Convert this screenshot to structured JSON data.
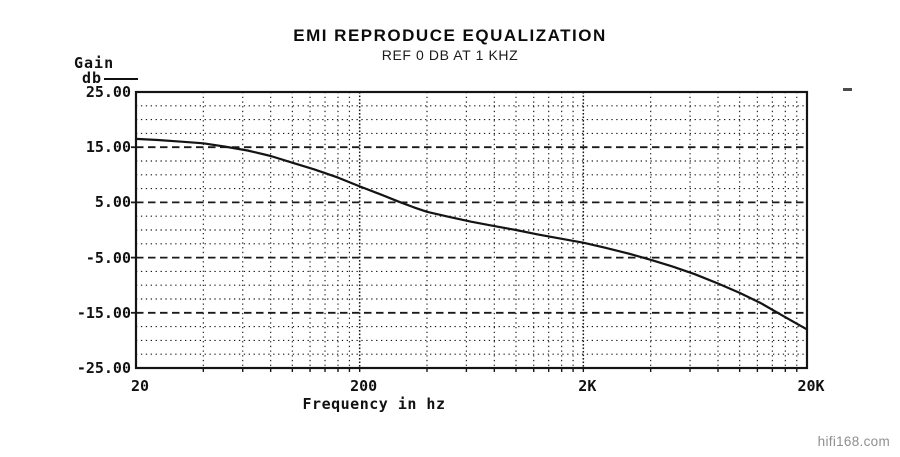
{
  "header": {
    "title": "EMI REPRODUCE EQUALIZATION",
    "subtitle": "REF 0 DB AT 1 KHZ"
  },
  "watermark": "hifi168.com",
  "colors": {
    "ink": "#141414",
    "grid": "#1a1a1a",
    "curve": "#141414",
    "watermark": "#8f8f8f"
  },
  "chart_data": {
    "type": "line",
    "title": "EMI REPRODUCE EQUALIZATION",
    "subtitle": "REF 0 DB AT 1 KHZ",
    "xlabel": "Frequency in hz",
    "ylabel_line1": "Gain",
    "ylabel_line2": "db",
    "x_scale": "log",
    "x_range": [
      20,
      20000
    ],
    "ylim": [
      -25,
      25
    ],
    "grid": "dotted minor grid; dashed major horizontals; solid border",
    "legend_position": "none",
    "y_major_ticks": [
      {
        "value": 25,
        "label": "25.00"
      },
      {
        "value": 15,
        "label": "15.00"
      },
      {
        "value": 5,
        "label": "5.00"
      },
      {
        "value": -5,
        "label": "-5.00"
      },
      {
        "value": -15,
        "label": "-15.00"
      },
      {
        "value": -25,
        "label": "-25.00"
      }
    ],
    "y_minor_step": 2.5,
    "x_major_ticks": [
      {
        "value": 20,
        "label": "20"
      },
      {
        "value": 200,
        "label": "200"
      },
      {
        "value": 2000,
        "label": "2K"
      },
      {
        "value": 20000,
        "label": "20K"
      }
    ],
    "x_minor_multiples": [
      2,
      3,
      4,
      5,
      6,
      7,
      8,
      9
    ],
    "x_decade_lines": [
      200,
      2000
    ],
    "series": [
      {
        "name": "EMI reproduce equalization curve (gain db vs frequency hz, 0 db ref at 1 kHz)",
        "points": [
          [
            20,
            16.5
          ],
          [
            25,
            16.3
          ],
          [
            32,
            16.0
          ],
          [
            40,
            15.7
          ],
          [
            50,
            15.1
          ],
          [
            63,
            14.4
          ],
          [
            80,
            13.4
          ],
          [
            100,
            12.2
          ],
          [
            125,
            11.0
          ],
          [
            160,
            9.5
          ],
          [
            200,
            7.9
          ],
          [
            250,
            6.4
          ],
          [
            300,
            5.1
          ],
          [
            350,
            4.1
          ],
          [
            400,
            3.3
          ],
          [
            500,
            2.4
          ],
          [
            630,
            1.5
          ],
          [
            800,
            0.7
          ],
          [
            1000,
            0.0
          ],
          [
            1250,
            -0.8
          ],
          [
            1600,
            -1.6
          ],
          [
            2000,
            -2.3
          ],
          [
            2500,
            -3.2
          ],
          [
            3200,
            -4.3
          ],
          [
            4000,
            -5.4
          ],
          [
            5000,
            -6.6
          ],
          [
            6300,
            -8.0
          ],
          [
            8000,
            -9.7
          ],
          [
            10000,
            -11.4
          ],
          [
            12500,
            -13.3
          ],
          [
            16000,
            -15.8
          ],
          [
            20000,
            -18.0
          ]
        ]
      }
    ]
  }
}
